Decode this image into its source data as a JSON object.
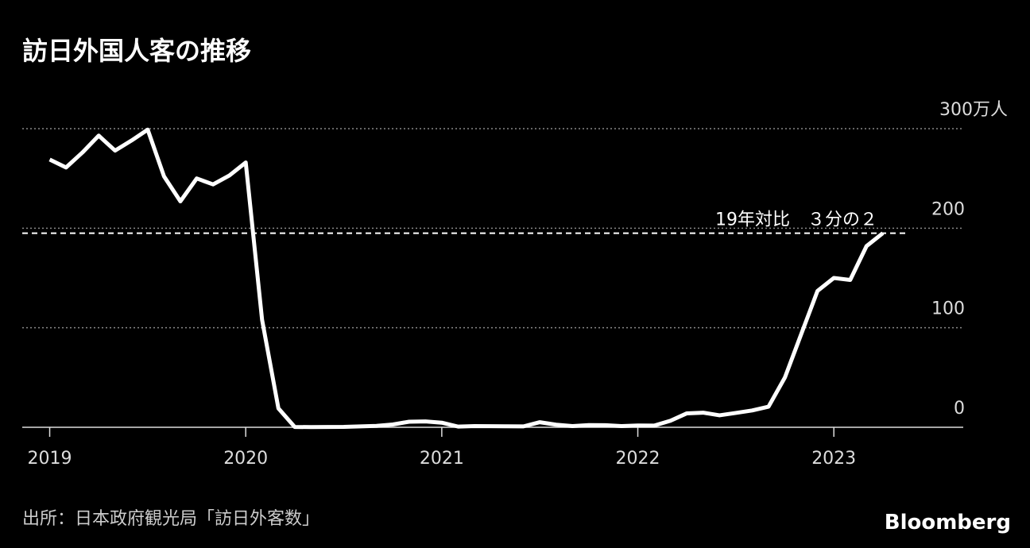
{
  "chart_data": {
    "type": "line",
    "title": "訪日外国人客の推移",
    "source": "出所：日本政府観光局「訪日外客数」",
    "brand": "Bloomberg",
    "x": [
      "2019-01",
      "2019-02",
      "2019-03",
      "2019-04",
      "2019-05",
      "2019-06",
      "2019-07",
      "2019-08",
      "2019-09",
      "2019-10",
      "2019-11",
      "2019-12",
      "2020-01",
      "2020-02",
      "2020-03",
      "2020-04",
      "2020-05",
      "2020-06",
      "2020-07",
      "2020-08",
      "2020-09",
      "2020-10",
      "2020-11",
      "2020-12",
      "2021-01",
      "2021-02",
      "2021-03",
      "2021-04",
      "2021-05",
      "2021-06",
      "2021-07",
      "2021-08",
      "2021-09",
      "2021-10",
      "2021-11",
      "2021-12",
      "2022-01",
      "2022-02",
      "2022-03",
      "2022-04",
      "2022-05",
      "2022-06",
      "2022-07",
      "2022-08",
      "2022-09",
      "2022-10",
      "2022-11",
      "2022-12",
      "2023-01",
      "2023-02",
      "2023-03",
      "2023-04"
    ],
    "series": [
      {
        "color": "#ffffff",
        "values": [
          269,
          261,
          276,
          293,
          278,
          288,
          299,
          252,
          227,
          250,
          244,
          253,
          266,
          108,
          19,
          0.3,
          0.2,
          0.3,
          0.4,
          0.9,
          1.4,
          2.8,
          5.6,
          5.9,
          4.6,
          0.7,
          1.2,
          1.1,
          1,
          0.9,
          5.1,
          2.6,
          1.2,
          2.2,
          2.1,
          1.2,
          1.8,
          1.7,
          6.6,
          14,
          14.7,
          12,
          14.4,
          16.9,
          20.7,
          49.9,
          93.5,
          137,
          150,
          148,
          182,
          195
        ]
      }
    ],
    "reference": {
      "value": 195,
      "label": "19年対比　３分の２"
    },
    "xlim": [
      2018.86,
      2023.66
    ],
    "xticks": [
      2019,
      2020,
      2021,
      2022,
      2023
    ],
    "ylim": [
      0,
      300
    ],
    "yticks": [
      0,
      100,
      200,
      {
        "value": 300,
        "label": "300万人"
      }
    ],
    "grid": true
  }
}
